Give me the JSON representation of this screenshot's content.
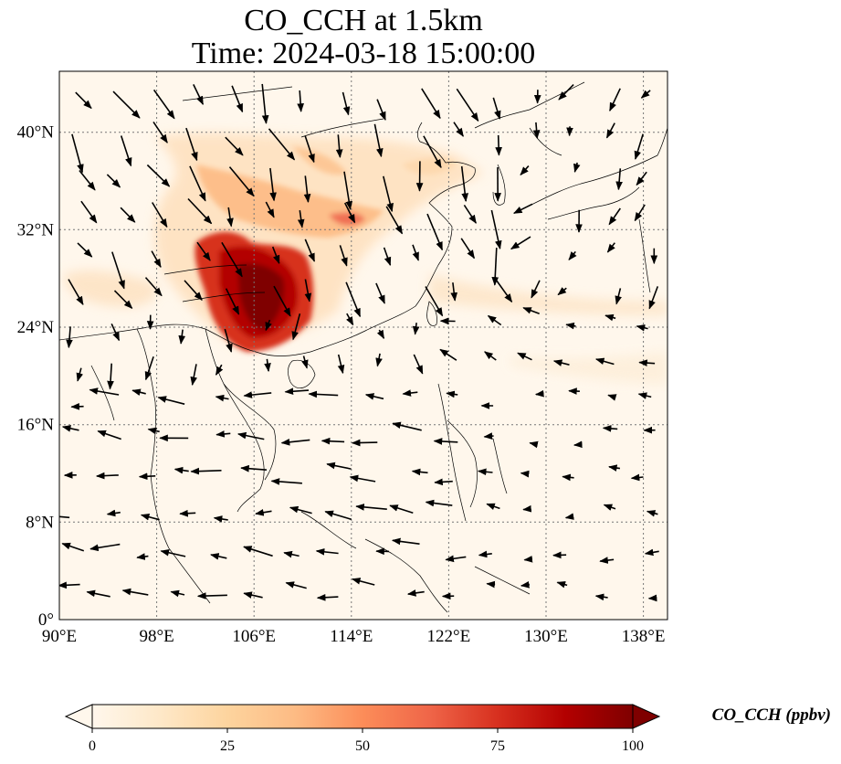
{
  "title": {
    "line1": "CO_CCH at 1.5km",
    "line2": "Time: 2024-03-18 15:00:00"
  },
  "map": {
    "lon_range": [
      90,
      140
    ],
    "lat_range": [
      0,
      45
    ],
    "grid": "dotted",
    "lon_ticks": [
      "90°E",
      "98°E",
      "106°E",
      "114°E",
      "122°E",
      "130°E",
      "138°E"
    ],
    "lat_ticks": [
      "0°",
      "8°N",
      "16°N",
      "24°N",
      "32°N",
      "40°N"
    ],
    "field_peak_region": "southern China (approx. 102–112°E, 22–31°N)",
    "wind_vectors": "black arrows, generally southeastward over northern China and westward over the South China Sea"
  },
  "colorbar": {
    "label": "CO_CCH (ppbv)",
    "ticks": [
      "0",
      "25",
      "50",
      "75",
      "100"
    ],
    "min": 0,
    "max": 100,
    "colormap": [
      "#fff7ec",
      "#fee8c8",
      "#fdd49e",
      "#fdbb84",
      "#fc8d59",
      "#ef6548",
      "#d7301f",
      "#b30000",
      "#7f0000"
    ]
  }
}
